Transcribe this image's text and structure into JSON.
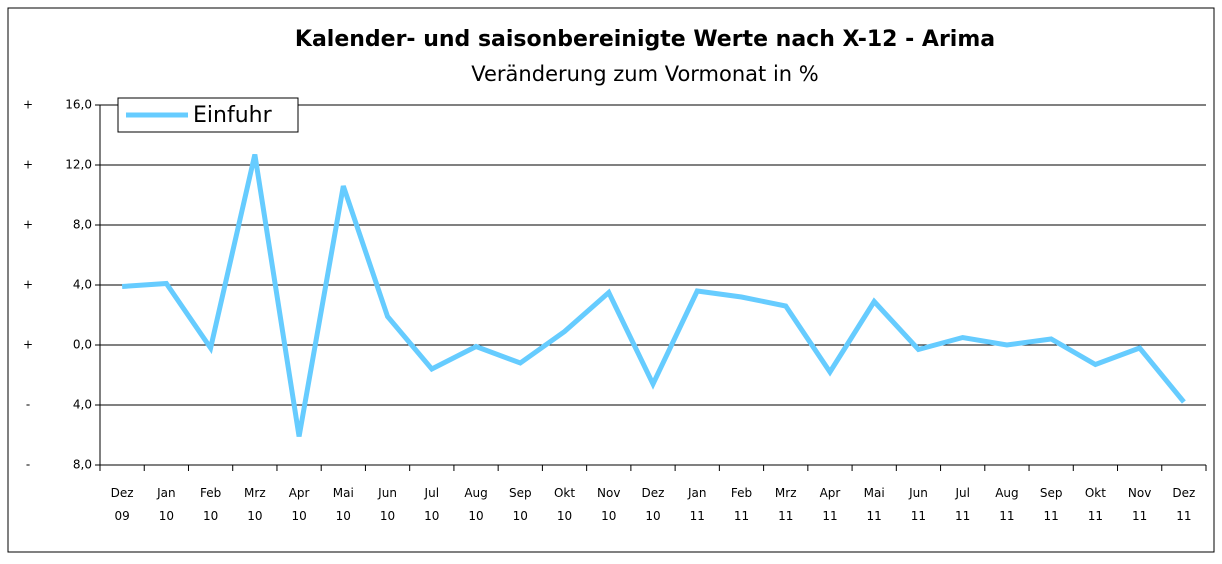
{
  "chart_data": {
    "type": "line",
    "title": "Kalender- und saisonbereinigte Werte nach X-12 - Arima",
    "subtitle": "Veränderung zum Vormonat in %",
    "categories": [
      "Dez 09",
      "Jan 10",
      "Feb 10",
      "Mrz 10",
      "Apr 10",
      "Mai 10",
      "Jun 10",
      "Jul 10",
      "Aug 10",
      "Sep 10",
      "Okt 10",
      "Nov 10",
      "Dez 10",
      "Jan 11",
      "Feb 11",
      "Mrz 11",
      "Apr 11",
      "Mai 11",
      "Jun 11",
      "Jul 11",
      "Aug 11",
      "Sep 11",
      "Okt 11",
      "Nov 11",
      "Dez 11"
    ],
    "series": [
      {
        "name": "Einfuhr",
        "color": "#66ccff",
        "values": [
          3.9,
          4.1,
          -0.2,
          12.7,
          -6.1,
          10.6,
          1.9,
          -1.6,
          -0.1,
          -1.2,
          0.9,
          3.5,
          -2.6,
          3.6,
          3.2,
          2.6,
          -1.8,
          2.9,
          -0.3,
          0.5,
          0.0,
          0.4,
          -1.3,
          -0.2,
          -3.8
        ]
      }
    ],
    "ylim": [
      -8,
      16
    ],
    "yticks": [
      {
        "value": -8,
        "label": "8,0"
      },
      {
        "value": -4,
        "label": "4,0"
      },
      {
        "value": 0,
        "label": "0,0"
      },
      {
        "value": 4,
        "label": "4,0"
      },
      {
        "value": 8,
        "label": "8,0"
      },
      {
        "value": 12,
        "label": "12,0"
      },
      {
        "value": 16,
        "label": "16,0"
      }
    ],
    "ytick_signs": [
      "-",
      "-",
      "+",
      "+",
      "+",
      "+",
      "+"
    ],
    "grid": true,
    "legend": "upper left"
  }
}
